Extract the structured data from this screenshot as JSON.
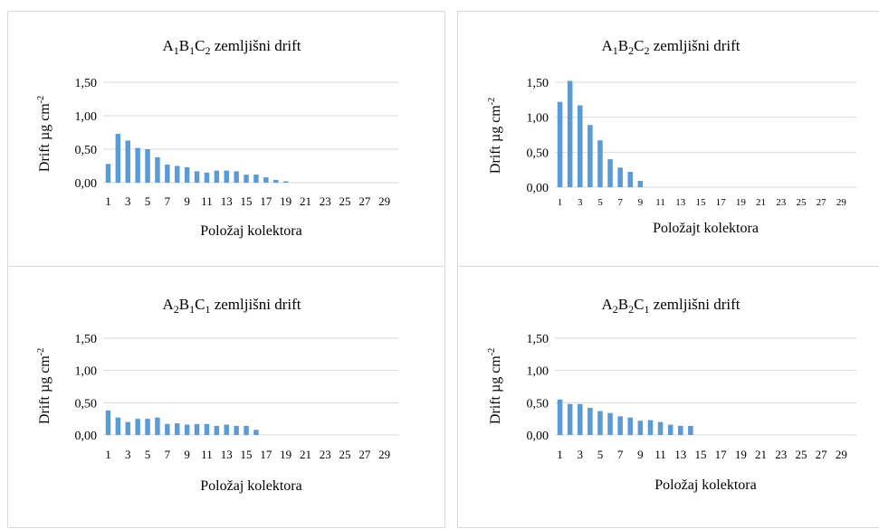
{
  "chart_data": [
    {
      "type": "bar",
      "title": {
        "main": "A",
        "s1": "1",
        "mid1": "B",
        "s2": "1",
        "mid2": "C",
        "s3": "2",
        "rest": " zemljišni drift"
      },
      "xlabel": "Položaj kolektora",
      "ylabel": {
        "text": "Drift µg cm",
        "sup": "-2"
      },
      "ylim": [
        0,
        1.5
      ],
      "yticks": [
        "0,00",
        "0,50",
        "1,00",
        "1,50"
      ],
      "categories": [
        1,
        2,
        3,
        4,
        5,
        6,
        7,
        8,
        9,
        10,
        11,
        12,
        13,
        14,
        15,
        16,
        17,
        18,
        19,
        20,
        21,
        22,
        23,
        24,
        25,
        26,
        27,
        28,
        29,
        30
      ],
      "xtick_labels": [
        "1",
        "3",
        "5",
        "7",
        "9",
        "11",
        "13",
        "15",
        "17",
        "19",
        "21",
        "23",
        "25",
        "27",
        "29"
      ],
      "values": [
        0.28,
        0.73,
        0.63,
        0.52,
        0.5,
        0.38,
        0.27,
        0.25,
        0.23,
        0.17,
        0.15,
        0.18,
        0.18,
        0.17,
        0.12,
        0.12,
        0.08,
        0.04,
        0.02,
        0,
        0,
        0,
        0,
        0,
        0,
        0,
        0,
        0,
        0,
        0
      ],
      "color": "#5B9BD5",
      "grid": true
    },
    {
      "type": "bar",
      "title": {
        "main": "A",
        "s1": "1",
        "mid1": "B",
        "s2": "2",
        "mid2": "C",
        "s3": "2",
        "rest": " zemljišni drift"
      },
      "xlabel": "Položajt kolektora",
      "ylabel": {
        "text": "Drift µg cm",
        "sup": "-2"
      },
      "ylim": [
        0,
        1.5
      ],
      "yticks": [
        "0,00",
        "0,50",
        "1,00",
        "1,50"
      ],
      "categories": [
        1,
        2,
        3,
        4,
        5,
        6,
        7,
        8,
        9,
        10,
        11,
        12,
        13,
        14,
        15,
        16,
        17,
        18,
        19,
        20,
        21,
        22,
        23,
        24,
        25,
        26,
        27,
        28,
        29,
        30
      ],
      "xtick_labels": [
        "1",
        "3",
        "5",
        "7",
        "9",
        "11",
        "13",
        "15",
        "17",
        "19",
        "21",
        "23",
        "25",
        "27",
        "29"
      ],
      "values": [
        1.22,
        1.52,
        1.17,
        0.89,
        0.67,
        0.4,
        0.28,
        0.22,
        0.09,
        0,
        0,
        0,
        0,
        0,
        0,
        0,
        0,
        0,
        0,
        0,
        0,
        0,
        0,
        0,
        0,
        0,
        0,
        0,
        0,
        0
      ],
      "color": "#5B9BD5",
      "grid": true
    },
    {
      "type": "bar",
      "title": {
        "main": "A",
        "s1": "2",
        "mid1": "B",
        "s2": "1",
        "mid2": "C",
        "s3": "1",
        "rest": " zemljišni  drift"
      },
      "xlabel": "Položaj kolektora",
      "ylabel": {
        "text": "Drift µg cm",
        "sup": "-2"
      },
      "ylim": [
        0,
        1.5
      ],
      "yticks": [
        "0,00",
        "0,50",
        "1,00",
        "1,50"
      ],
      "categories": [
        1,
        2,
        3,
        4,
        5,
        6,
        7,
        8,
        9,
        10,
        11,
        12,
        13,
        14,
        15,
        16,
        17,
        18,
        19,
        20,
        21,
        22,
        23,
        24,
        25,
        26,
        27,
        28,
        29,
        30
      ],
      "xtick_labels": [
        "1",
        "3",
        "5",
        "7",
        "9",
        "11",
        "13",
        "15",
        "17",
        "19",
        "21",
        "23",
        "25",
        "27",
        "29"
      ],
      "values": [
        0.38,
        0.27,
        0.2,
        0.25,
        0.25,
        0.27,
        0.17,
        0.18,
        0.16,
        0.17,
        0.17,
        0.14,
        0.16,
        0.14,
        0.14,
        0.08,
        0,
        0,
        0,
        0,
        0,
        0,
        0,
        0,
        0,
        0,
        0,
        0,
        0,
        0
      ],
      "color": "#5B9BD5",
      "grid": true
    },
    {
      "type": "bar",
      "title": {
        "main": "A",
        "s1": "2",
        "mid1": "B",
        "s2": "2",
        "mid2": "C",
        "s3": "1",
        "rest": " zemljišni drift"
      },
      "xlabel": "Položaj kolektora",
      "ylabel": {
        "text": "Drift µg cm",
        "sup": "-2"
      },
      "ylim": [
        0,
        1.5
      ],
      "yticks": [
        "0,00",
        "0,50",
        "1,00",
        "1,50"
      ],
      "categories": [
        1,
        2,
        3,
        4,
        5,
        6,
        7,
        8,
        9,
        10,
        11,
        12,
        13,
        14,
        15,
        16,
        17,
        18,
        19,
        20,
        21,
        22,
        23,
        24,
        25,
        26,
        27,
        28,
        29,
        30
      ],
      "xtick_labels": [
        "1",
        "3",
        "5",
        "7",
        "9",
        "11",
        "13",
        "15",
        "17",
        "19",
        "21",
        "23",
        "25",
        "27",
        "29"
      ],
      "values": [
        0.55,
        0.48,
        0.48,
        0.42,
        0.37,
        0.34,
        0.29,
        0.27,
        0.22,
        0.23,
        0.2,
        0.16,
        0.14,
        0.14,
        0,
        0,
        0,
        0,
        0,
        0,
        0,
        0,
        0,
        0,
        0,
        0,
        0,
        0,
        0,
        0
      ],
      "color": "#5B9BD5",
      "grid": true
    }
  ]
}
